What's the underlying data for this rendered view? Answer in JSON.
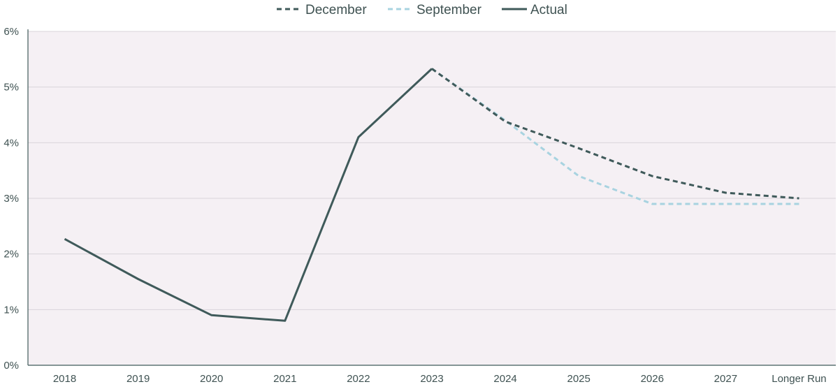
{
  "chart_data": {
    "type": "line",
    "categories": [
      "2018",
      "2019",
      "2020",
      "2021",
      "2022",
      "2023",
      "2024",
      "2025",
      "2026",
      "2027",
      "Longer Run"
    ],
    "ylim": [
      0,
      6
    ],
    "yticks": [
      "0%",
      "1%",
      "2%",
      "3%",
      "4%",
      "5%",
      "6%"
    ],
    "grid": true,
    "legend_position": "top-center",
    "series": [
      {
        "name": "December",
        "style": "dashed",
        "color": "#3f5a5a",
        "values": [
          null,
          null,
          null,
          null,
          null,
          5.33,
          4.38,
          3.9,
          3.4,
          3.1,
          3.0
        ]
      },
      {
        "name": "September",
        "style": "dashed",
        "color": "#a8d3e0",
        "values": [
          null,
          null,
          null,
          null,
          null,
          5.33,
          4.4,
          3.4,
          2.9,
          2.9,
          2.9
        ]
      },
      {
        "name": "Actual",
        "style": "solid",
        "color": "#3f5a5a",
        "values": [
          2.27,
          1.55,
          0.9,
          0.8,
          4.1,
          5.33,
          null,
          null,
          null,
          null,
          null
        ]
      }
    ],
    "colors": {
      "plot_background": "#f5f0f4",
      "gridline": "#d9d4da",
      "axis": "#3f5a5a",
      "text": "#3f5252"
    }
  }
}
